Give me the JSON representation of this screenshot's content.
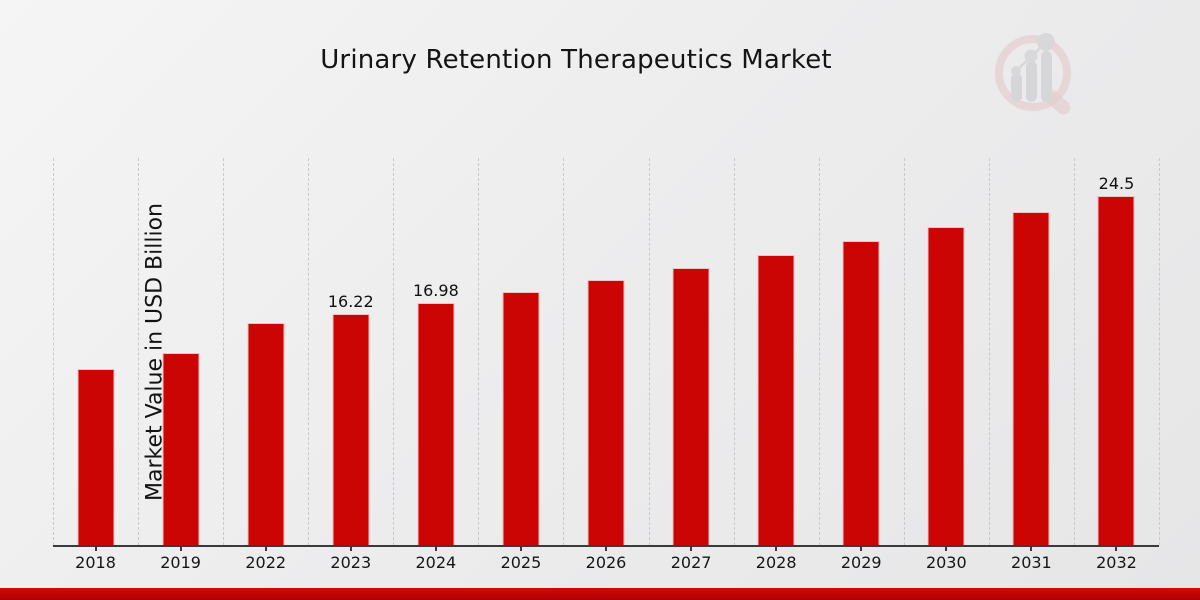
{
  "header": {
    "title": "Urinary Retention Therapeutics Market"
  },
  "icons": {
    "watermark": "market-growth-magnifier-logo"
  },
  "colors": {
    "bar": "#cb0404",
    "bottom_band": "#c00505",
    "background": "#ececed",
    "gridline": "#c9c9cb",
    "axis": "#3a3a3a",
    "watermark_ring": "#dcb3b6",
    "watermark_bars": "#c3c3c8"
  },
  "chart_data": {
    "type": "bar",
    "title": "Urinary Retention Therapeutics Market",
    "xlabel": "",
    "ylabel": "Market Value in USD Billion",
    "categories": [
      "2018",
      "2019",
      "2022",
      "2023",
      "2024",
      "2025",
      "2026",
      "2027",
      "2028",
      "2029",
      "2030",
      "2031",
      "2032"
    ],
    "values": [
      12.35,
      13.5,
      15.6,
      16.22,
      16.98,
      17.78,
      18.61,
      19.49,
      20.4,
      21.36,
      22.36,
      23.41,
      24.5
    ],
    "bar_labels": [
      "",
      "",
      "",
      "16.22",
      "16.98",
      "",
      "",
      "",
      "",
      "",
      "",
      "",
      "24.5"
    ],
    "ylim": [
      0,
      27.2
    ],
    "grid": "vertical-dashed",
    "legend": "none",
    "bar_color": "#cb0404",
    "unit": "USD Billion"
  }
}
